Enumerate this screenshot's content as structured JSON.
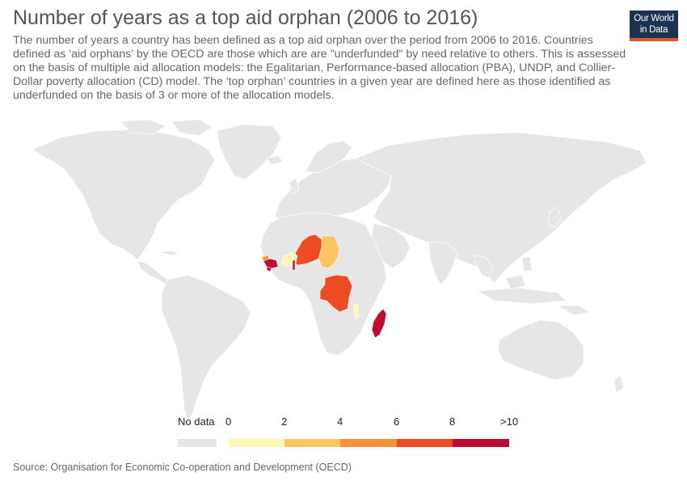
{
  "header": {
    "title": "Number of years as a top aid orphan (2006 to 2016)",
    "subtitle": "The number of years a country has been defined as a top aid orphan over the period from 2006 to 2016. Countries defined as 'aid orphans' by the OECD are those which are are \"underfunded\" by need relative to others. This is assessed on the basis of multiple aid allocation models: the Egalitarian, Performance-based allocation (PBA), UNDP, and Collier-Dollar poverty allocation (CD) model. The 'top orphan' countries in a given year are defined here as those identified as underfunded on the basis of 3 or more of the allocation models."
  },
  "logo": {
    "line1": "Our World",
    "line2": "in Data"
  },
  "legend": {
    "no_data_label": "No data",
    "no_data_color": "#e6e6e6",
    "ticks": [
      "0",
      "2",
      "4",
      "6",
      "8",
      ">10"
    ],
    "bins": [
      {
        "range": "0-2",
        "color": "#fef6b4"
      },
      {
        "range": "2-4",
        "color": "#fcc462"
      },
      {
        "range": "4-6",
        "color": "#f99237"
      },
      {
        "range": "6-8",
        "color": "#ec4b23"
      },
      {
        "range": ">8",
        "color": "#bd0e31"
      }
    ]
  },
  "map": {
    "land_color": "#e6e6e6",
    "border_color": "#ffffff",
    "highlighted_countries": [
      {
        "name": "Niger",
        "bin": "6-8",
        "color": "#ec4b23"
      },
      {
        "name": "Chad",
        "bin": "2-4",
        "color": "#fcc462"
      },
      {
        "name": "Democratic Republic of Congo",
        "bin": "6-8",
        "color": "#ec4b23"
      },
      {
        "name": "Madagascar",
        "bin": ">8",
        "color": "#bd0e31"
      },
      {
        "name": "Guinea",
        "bin": ">8",
        "color": "#bd0e31"
      },
      {
        "name": "Guinea-Bissau",
        "bin": "4-6",
        "color": "#f99237"
      },
      {
        "name": "Sierra Leone",
        "bin": ">8",
        "color": "#bd0e31"
      },
      {
        "name": "Togo",
        "bin": ">8",
        "color": "#bd0e31"
      },
      {
        "name": "Burkina Faso",
        "bin": "0-2",
        "color": "#fef6b4"
      },
      {
        "name": "Malawi",
        "bin": "0-2",
        "color": "#fef6b4"
      }
    ]
  },
  "source": "Source: Organisation for Economic Co-operation and Development (OECD)"
}
